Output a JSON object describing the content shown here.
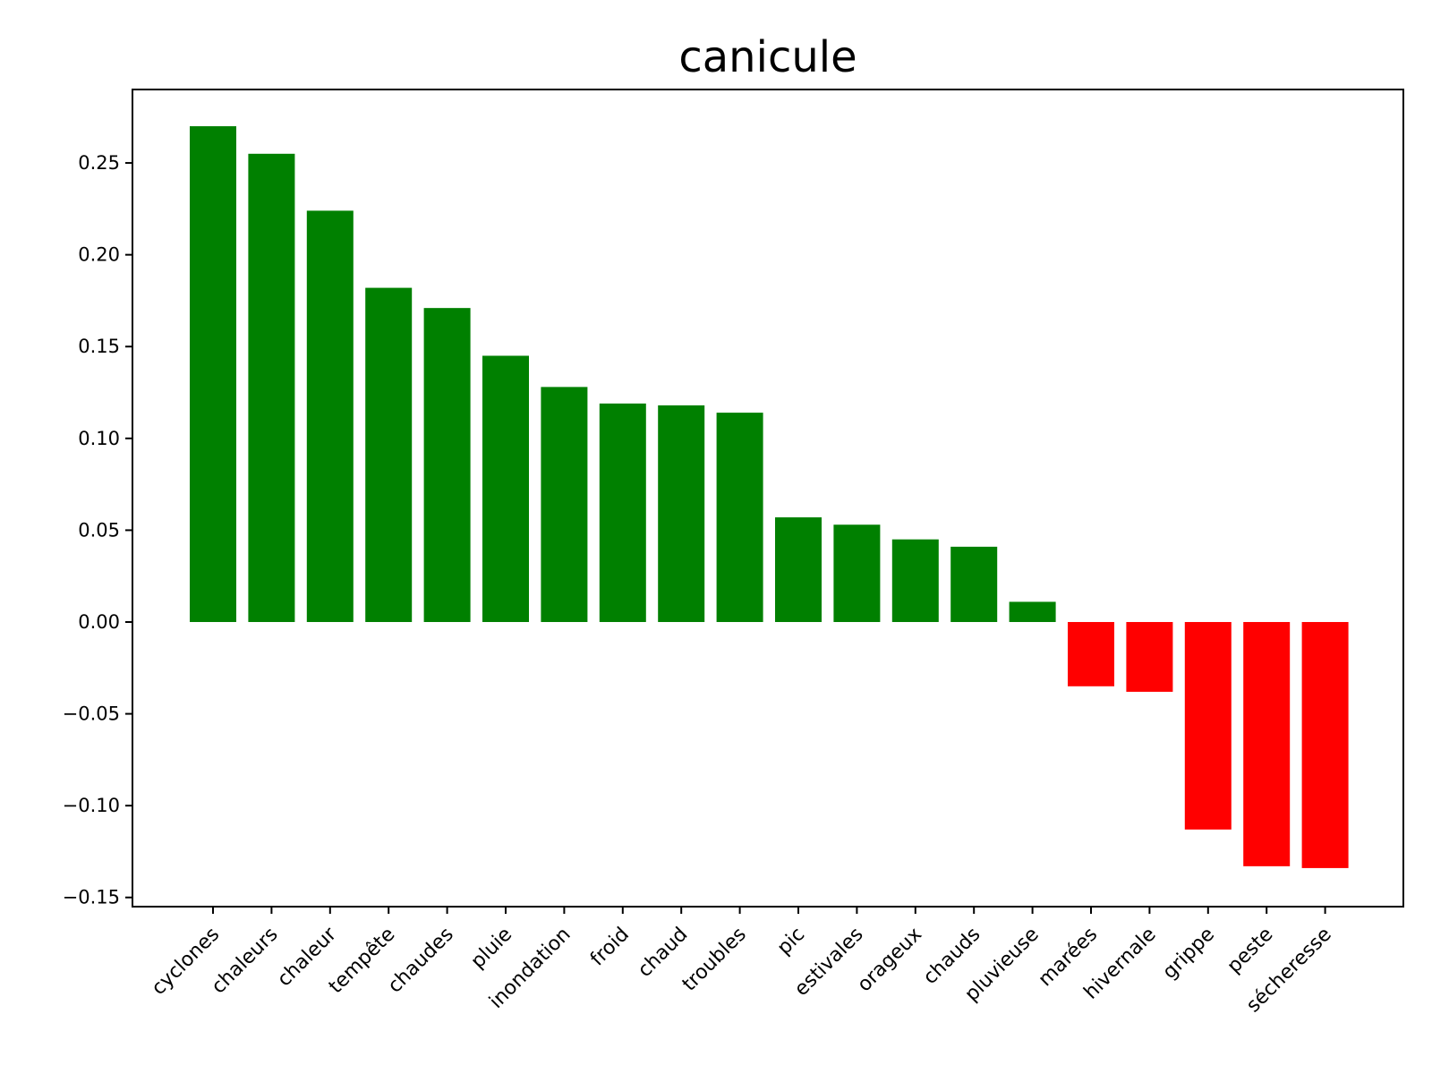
{
  "chart_data": {
    "type": "bar",
    "title": "canicule",
    "xlabel": "",
    "ylabel": "",
    "ylim": [
      -0.155,
      0.29
    ],
    "yticks": [
      -0.15,
      -0.1,
      -0.05,
      0.0,
      0.05,
      0.1,
      0.15,
      0.2,
      0.25
    ],
    "ytick_labels": [
      "−0.15",
      "−0.10",
      "−0.05",
      "0.00",
      "0.05",
      "0.10",
      "0.15",
      "0.20",
      "0.25"
    ],
    "grid": false,
    "categories": [
      "cyclones",
      "chaleurs",
      "chaleur",
      "tempête",
      "chaudes",
      "pluie",
      "inondation",
      "froid",
      "chaud",
      "troubles",
      "pic",
      "estivales",
      "orageux",
      "chauds",
      "pluvieuse",
      "marées",
      "hivernale",
      "grippe",
      "peste",
      "sécheresse"
    ],
    "values": [
      0.27,
      0.255,
      0.224,
      0.182,
      0.171,
      0.145,
      0.128,
      0.119,
      0.118,
      0.114,
      0.057,
      0.053,
      0.045,
      0.041,
      0.011,
      -0.035,
      -0.038,
      -0.113,
      -0.133,
      -0.134
    ],
    "colors": {
      "positive": "#008000",
      "negative": "#ff0000"
    }
  }
}
